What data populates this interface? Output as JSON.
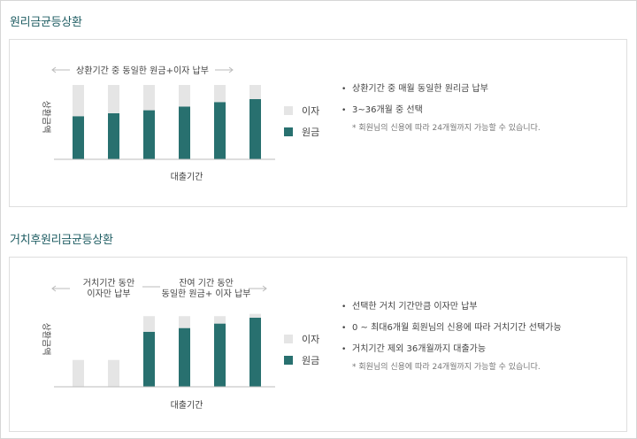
{
  "colors": {
    "interest": "#e5e5e5",
    "principal": "#28706f",
    "title": "#1f5d63"
  },
  "sections": [
    {
      "title": "원리금균등상환",
      "chart_data": {
        "type": "bar",
        "stacked": true,
        "categories": [
          "",
          "",
          "",
          "",
          "",
          ""
        ],
        "series": [
          {
            "name": "원금",
            "values": [
              58,
              62,
              66,
              71,
              77,
              81
            ]
          },
          {
            "name": "이자",
            "values": [
              42,
              38,
              34,
              29,
              23,
              19
            ]
          }
        ],
        "ylim": [
          0,
          100
        ],
        "xlabel": "대출기간",
        "ylabel": "상환금액",
        "annotations": [
          "상환기간 중 동일한 원금+이자 납부"
        ],
        "legend": "right"
      },
      "notes": [
        "상환기간 중 매월 동일한 원리금 납부",
        "3~36개월 중 선택"
      ],
      "subnote": "* 회원님의 신용에 따라 24개월까지 가능할 수 있습니다."
    },
    {
      "title": "거치후원리금균등상환",
      "chart_data": {
        "type": "bar",
        "stacked": true,
        "categories": [
          "",
          "",
          "",
          "",
          "",
          ""
        ],
        "series": [
          {
            "name": "원금",
            "values": [
              0,
              0,
              74,
              79,
              85,
              93
            ]
          },
          {
            "name": "이자",
            "values": [
              36,
              36,
              21,
              16,
              10,
              5
            ]
          }
        ],
        "ylim": [
          0,
          100
        ],
        "xlabel": "대출기간",
        "ylabel": "상환금액",
        "annotations": [
          "거치기간 동안\n이자만 납부",
          "잔여 기간 동안\n동일한 원금+ 이자 납부"
        ],
        "legend": "right"
      },
      "notes": [
        "선택한 거치 기간만큼 이자만 납부",
        "0 ~ 최대6개월 회원님의 신용에 따라 거치기간 선택가능",
        "거치기간 제외 36개월까지 대출가능"
      ],
      "subnote": "* 회원님의 신용에 따라 24개월까지 가능할 수 있습니다."
    }
  ]
}
